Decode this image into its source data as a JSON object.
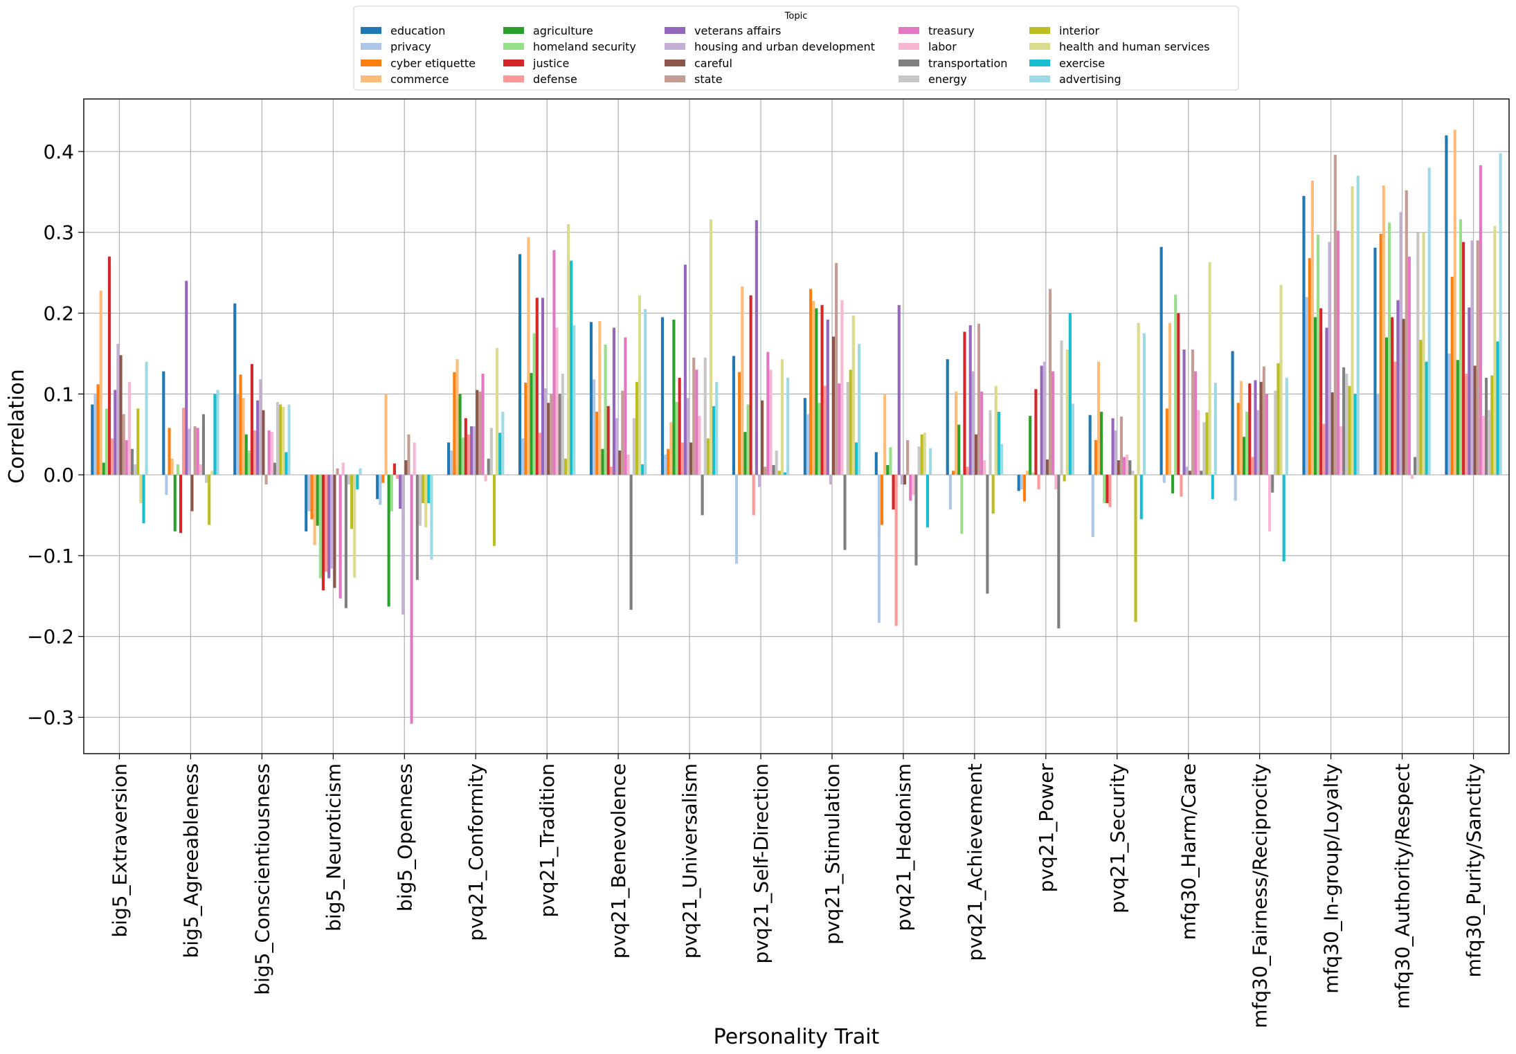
{
  "chart_data": {
    "type": "bar",
    "xlabel": "Personality Trait",
    "ylabel": "Correlation",
    "ylim": [
      -0.345,
      0.465
    ],
    "yticks": [
      -0.3,
      -0.2,
      -0.1,
      0.0,
      0.1,
      0.2,
      0.3,
      0.4
    ],
    "ytick_labels": [
      "−0.3",
      "−0.2",
      "−0.1",
      "0.0",
      "0.1",
      "0.2",
      "0.3",
      "0.4"
    ],
    "grid": true,
    "legend": {
      "title": "Topic",
      "placement": "top-center, outside plot",
      "columns": 5
    },
    "categories": [
      "big5_Extraversion",
      "big5_Agreeableness",
      "big5_Conscientiousness",
      "big5_Neuroticism",
      "big5_Openness",
      "pvq21_Conformity",
      "pvq21_Tradition",
      "pvq21_Benevolence",
      "pvq21_Universalism",
      "pvq21_Self-Direction",
      "pvq21_Stimulation",
      "pvq21_Hedonism",
      "pvq21_Achievement",
      "pvq21_Power",
      "pvq21_Security",
      "mfq30_Harm/Care",
      "mfq30_Fairness/Reciprocity",
      "mfq30_In-group/Loyalty",
      "mfq30_Authority/Respect",
      "mfq30_Purity/Sanctity"
    ],
    "series": [
      {
        "name": "education",
        "color": "#1f77b4",
        "values": [
          0.087,
          0.128,
          0.212,
          -0.07,
          -0.03,
          0.04,
          0.273,
          0.189,
          0.195,
          0.147,
          0.095,
          0.028,
          0.143,
          -0.02,
          0.074,
          0.282,
          0.153,
          0.345,
          0.281,
          0.42
        ]
      },
      {
        "name": "privacy",
        "color": "#aec7e8",
        "values": [
          0.1,
          -0.025,
          0.1,
          -0.045,
          -0.037,
          0.03,
          0.045,
          0.118,
          0.025,
          -0.11,
          0.075,
          -0.183,
          -0.043,
          -0.018,
          -0.077,
          -0.01,
          -0.032,
          0.22,
          0.1,
          0.15
        ]
      },
      {
        "name": "cyber etiquette",
        "color": "#ff7f0e",
        "values": [
          0.112,
          0.058,
          0.124,
          -0.055,
          -0.01,
          0.127,
          0.114,
          0.078,
          0.032,
          0.127,
          0.23,
          -0.062,
          0.005,
          -0.033,
          0.043,
          0.082,
          0.089,
          0.268,
          0.298,
          0.245
        ]
      },
      {
        "name": "commerce",
        "color": "#ffbb78",
        "values": [
          0.228,
          0.02,
          0.095,
          -0.087,
          0.1,
          0.143,
          0.294,
          0.19,
          0.065,
          0.233,
          0.215,
          0.1,
          0.103,
          0.005,
          0.14,
          0.188,
          0.116,
          0.364,
          0.358,
          0.427
        ]
      },
      {
        "name": "agriculture",
        "color": "#2ca02c",
        "values": [
          0.015,
          -0.07,
          0.05,
          -0.063,
          -0.163,
          0.1,
          0.126,
          0.032,
          0.192,
          0.053,
          0.206,
          0.012,
          0.062,
          0.073,
          0.078,
          -0.023,
          0.047,
          0.195,
          0.17,
          0.142
        ]
      },
      {
        "name": "homeland security",
        "color": "#98df8a",
        "values": [
          0.082,
          0.013,
          0.03,
          -0.128,
          -0.045,
          0.046,
          0.175,
          0.161,
          0.09,
          0.087,
          0.089,
          0.034,
          -0.073,
          0.003,
          -0.035,
          0.223,
          0.078,
          0.297,
          0.312,
          0.316
        ]
      },
      {
        "name": "justice",
        "color": "#d62728",
        "values": [
          0.27,
          -0.072,
          0.137,
          -0.143,
          0.014,
          0.07,
          0.219,
          0.085,
          0.12,
          0.222,
          0.21,
          -0.043,
          0.177,
          0.106,
          -0.035,
          0.2,
          0.113,
          0.206,
          0.195,
          0.288
        ]
      },
      {
        "name": "defense",
        "color": "#ff9896",
        "values": [
          0.045,
          0.083,
          0.055,
          -0.12,
          -0.005,
          0.05,
          0.052,
          0.01,
          0.04,
          -0.05,
          0.11,
          -0.187,
          0.01,
          -0.018,
          -0.04,
          -0.027,
          0.022,
          0.063,
          0.14,
          0.125
        ]
      },
      {
        "name": "veterans affairs",
        "color": "#9467bd",
        "values": [
          0.105,
          0.24,
          0.092,
          -0.128,
          -0.042,
          0.06,
          0.219,
          0.182,
          0.26,
          0.315,
          0.192,
          0.21,
          0.185,
          0.135,
          0.07,
          0.155,
          0.117,
          0.182,
          0.216,
          0.207
        ]
      },
      {
        "name": "housing and urban development",
        "color": "#c5b0d5",
        "values": [
          0.162,
          0.057,
          0.118,
          -0.116,
          -0.173,
          0.06,
          0.107,
          0.07,
          0.095,
          -0.015,
          -0.012,
          -0.012,
          0.128,
          0.14,
          0.055,
          0.01,
          0.08,
          0.288,
          0.325,
          0.29
        ]
      },
      {
        "name": "careful",
        "color": "#8c564b",
        "values": [
          0.148,
          -0.045,
          0.08,
          -0.14,
          0.018,
          0.105,
          0.089,
          0.03,
          0.04,
          0.092,
          0.171,
          -0.012,
          0.05,
          0.019,
          0.018,
          0.005,
          0.115,
          0.102,
          0.193,
          0.135
        ]
      },
      {
        "name": "state",
        "color": "#c49c94",
        "values": [
          0.075,
          0.06,
          -0.012,
          0.008,
          0.05,
          0.103,
          0.1,
          0.104,
          0.145,
          0.01,
          0.262,
          0.043,
          0.187,
          0.23,
          0.072,
          0.155,
          0.134,
          0.396,
          0.352,
          0.29
        ]
      },
      {
        "name": "treasury",
        "color": "#e377c2",
        "values": [
          0.043,
          0.058,
          0.055,
          -0.153,
          -0.308,
          0.125,
          0.278,
          0.17,
          0.13,
          0.152,
          0.113,
          -0.032,
          0.103,
          0.128,
          0.022,
          0.128,
          0.1,
          0.302,
          0.27,
          0.383
        ]
      },
      {
        "name": "labor",
        "color": "#f7b6d2",
        "values": [
          0.115,
          0.013,
          0.053,
          0.015,
          0.04,
          -0.008,
          0.182,
          0.025,
          0.073,
          0.13,
          0.216,
          -0.025,
          0.018,
          -0.018,
          0.025,
          0.08,
          -0.07,
          0.06,
          -0.005,
          0.073
        ]
      },
      {
        "name": "transportation",
        "color": "#7f7f7f",
        "values": [
          0.032,
          0.075,
          0.015,
          -0.165,
          -0.13,
          0.02,
          0.1,
          -0.167,
          -0.05,
          0.012,
          -0.093,
          -0.112,
          -0.147,
          -0.19,
          0.018,
          0.005,
          -0.022,
          0.133,
          0.022,
          0.12
        ]
      },
      {
        "name": "energy",
        "color": "#c7c7c7",
        "values": [
          0.013,
          -0.01,
          0.09,
          -0.012,
          -0.063,
          0.058,
          0.125,
          0.07,
          0.145,
          0.03,
          0.115,
          0.035,
          0.08,
          0.166,
          0.005,
          0.065,
          0.104,
          0.125,
          0.3,
          0.08
        ]
      },
      {
        "name": "interior",
        "color": "#bcbd22",
        "values": [
          0.082,
          -0.062,
          0.087,
          -0.067,
          -0.035,
          -0.088,
          0.02,
          0.115,
          0.045,
          0.005,
          0.13,
          0.05,
          -0.048,
          -0.008,
          -0.182,
          0.077,
          0.138,
          0.11,
          0.167,
          0.123
        ]
      },
      {
        "name": "health and human services",
        "color": "#dbdb8d",
        "values": [
          -0.035,
          0.005,
          0.084,
          -0.127,
          -0.065,
          0.157,
          0.31,
          0.222,
          0.316,
          0.143,
          0.197,
          0.052,
          0.11,
          0.155,
          0.188,
          0.263,
          0.235,
          0.357,
          0.3,
          0.308
        ]
      },
      {
        "name": "exercise",
        "color": "#17becf",
        "values": [
          -0.06,
          0.1,
          0.028,
          -0.018,
          -0.035,
          0.052,
          0.265,
          0.013,
          0.085,
          0.003,
          0.04,
          -0.065,
          0.078,
          0.2,
          -0.055,
          -0.03,
          -0.107,
          0.1,
          0.14,
          0.165
        ]
      },
      {
        "name": "advertising",
        "color": "#9edae5",
        "values": [
          0.14,
          0.105,
          0.087,
          0.008,
          -0.105,
          0.078,
          0.185,
          0.205,
          0.115,
          0.12,
          0.162,
          0.033,
          0.038,
          0.088,
          0.175,
          0.114,
          0.12,
          0.37,
          0.38,
          0.398
        ]
      }
    ]
  }
}
